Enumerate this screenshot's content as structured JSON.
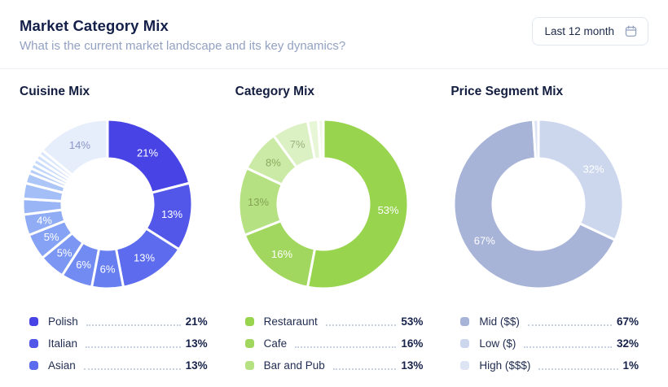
{
  "header": {
    "title": "Market Category Mix",
    "subtitle": "What is the current market landscape and its key dynamics?",
    "date_filter": {
      "label": "Last 12 month",
      "icon": "calendar-icon"
    }
  },
  "chart_data": [
    {
      "type": "donut",
      "title": "Cuisine Mix",
      "start_angle_deg": 0,
      "direction": "clockwise",
      "segments": [
        {
          "value": 21,
          "color": "#4843e5",
          "label": "21%",
          "label_color": "#ffffff"
        },
        {
          "value": 13,
          "color": "#5257e9",
          "label": "13%",
          "label_color": "#ffffff"
        },
        {
          "value": 13,
          "color": "#5d6cee",
          "label": "13%",
          "label_color": "#ffffff"
        },
        {
          "value": 6,
          "color": "#677ef1",
          "label": "6%",
          "label_color": "#ffffff"
        },
        {
          "value": 6,
          "color": "#718bf2",
          "label": "6%",
          "label_color": "#ffffff"
        },
        {
          "value": 5,
          "color": "#7c97f3",
          "label": "5%",
          "label_color": "#ffffff"
        },
        {
          "value": 5,
          "color": "#86a2f4",
          "label": "5%",
          "label_color": "#ffffff"
        },
        {
          "value": 4,
          "color": "#90acf5",
          "label": "4%",
          "label_color": "#ffffff"
        },
        {
          "value": 3,
          "color": "#9ab5f6"
        },
        {
          "value": 3,
          "color": "#a4bef7"
        },
        {
          "value": 2,
          "color": "#adc6f8"
        },
        {
          "value": 1,
          "color": "#b7cef9"
        },
        {
          "value": 1,
          "color": "#c0d5fa"
        },
        {
          "value": 1,
          "color": "#c9dbfb"
        },
        {
          "value": 1,
          "color": "#d2e1fb"
        },
        {
          "value": 1,
          "color": "#dae6fc"
        },
        {
          "value": 14,
          "color": "#e6edfb",
          "label": "14%",
          "label_color": "#8b97c9"
        }
      ],
      "legend": [
        {
          "label": "Polish",
          "value": "21%",
          "marker_color": "#4843e5"
        },
        {
          "label": "Italian",
          "value": "13%",
          "marker_color": "#5257e9"
        },
        {
          "label": "Asian",
          "value": "13%",
          "marker_color": "#5d6cee"
        }
      ]
    },
    {
      "type": "donut",
      "title": "Category Mix",
      "start_angle_deg": 0,
      "direction": "clockwise",
      "segments": [
        {
          "value": 53,
          "color": "#99d44f",
          "label": "53%",
          "label_color": "#ffffff"
        },
        {
          "value": 16,
          "color": "#a2d75f",
          "label": "16%",
          "label_color": "#ffffff"
        },
        {
          "value": 13,
          "color": "#b6e183",
          "label": "13%",
          "label_color": "#83a150"
        },
        {
          "value": 8,
          "color": "#cbeaa6",
          "label": "8%",
          "label_color": "#8ca95e"
        },
        {
          "value": 7,
          "color": "#dcf1c3",
          "label": "7%",
          "label_color": "#9bb27b"
        },
        {
          "value": 2,
          "color": "#e8f6d8"
        },
        {
          "value": 1,
          "color": "#f0f9e6"
        }
      ],
      "legend": [
        {
          "label": "Restaraunt",
          "value": "53%",
          "marker_color": "#99d44f"
        },
        {
          "label": "Cafe",
          "value": "16%",
          "marker_color": "#a2d75f"
        },
        {
          "label": "Bar and Pub",
          "value": "13%",
          "marker_color": "#b6e183"
        }
      ]
    },
    {
      "type": "donut",
      "title": "Price Segment Mix",
      "start_angle_deg": 0,
      "direction": "clockwise",
      "segments": [
        {
          "value": 32,
          "color": "#ccd7ee",
          "label": "32%",
          "label_color": "#ffffff"
        },
        {
          "value": 67,
          "color": "#a7b4d8",
          "label": "67%",
          "label_color": "#ffffff"
        },
        {
          "value": 1,
          "color": "#dde4f4"
        }
      ],
      "legend": [
        {
          "label": "Mid ($$)",
          "value": "67%",
          "marker_color": "#a7b4d8"
        },
        {
          "label": "Low ($)",
          "value": "32%",
          "marker_color": "#ccd7ee"
        },
        {
          "label": "High ($$$)",
          "value": "1%",
          "marker_color": "#dde4f4"
        }
      ]
    }
  ]
}
